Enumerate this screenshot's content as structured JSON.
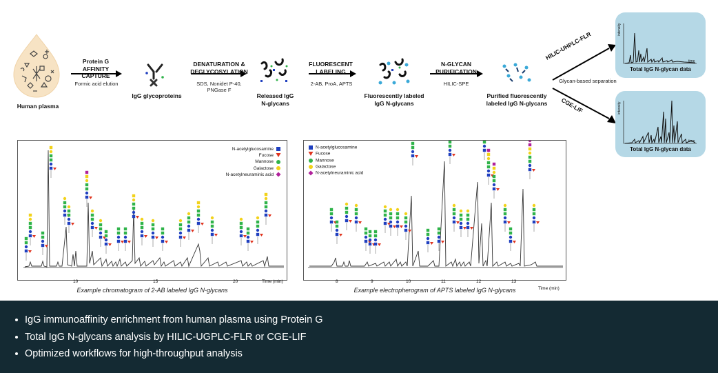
{
  "workflow": {
    "nodes": [
      {
        "id": "plasma",
        "label": "Human plasma"
      },
      {
        "id": "igg",
        "label": "IgG glycoproteins"
      },
      {
        "id": "released",
        "label": "Released IgG N-glycans"
      },
      {
        "id": "labeled",
        "label": "Fluorescently labeled IgG N-glycans"
      },
      {
        "id": "purified",
        "label": "Purified fluorescently labeled IgG N-glycans"
      }
    ],
    "steps": [
      {
        "title": "Protein G AFFINITY CAPTURE",
        "sub": "Formic acid elution"
      },
      {
        "title": "DENATURATION & DEGLYCOSYLATION",
        "sub": "SDS, Nonidet P-40, PNGase F"
      },
      {
        "title": "FLUORESCENT LABELING",
        "sub": "2-AB, ProA, APTS"
      },
      {
        "title": "N-GLYCAN PURIFICATION",
        "sub": "HILIC-SPE"
      }
    ],
    "branches": {
      "upper": "HILIC-UHPLC-FLR",
      "lower": "CGE-LIF",
      "middle": "Glycan-based separation"
    },
    "results": [
      {
        "label": "Total IgG N-glycan data",
        "yaxis": "intensity",
        "xaxis": "time"
      },
      {
        "label": "Total IgG N-glycan data",
        "yaxis": "intensity",
        "xaxis": "time"
      }
    ]
  },
  "legend": [
    {
      "name": "N-acetylglucosamine",
      "italic_prefix": "N",
      "color": "#1f3fbf",
      "shape": "square"
    },
    {
      "name": "Fucose",
      "color": "#e0341f",
      "shape": "triangle"
    },
    {
      "name": "Mannose",
      "color": "#2fb34a",
      "shape": "circle"
    },
    {
      "name": "Galactose",
      "color": "#f2d21a",
      "shape": "circle"
    },
    {
      "name": "N-acetylneuraminic acid",
      "italic_prefix": "N",
      "color": "#b0219b",
      "shape": "diamond"
    }
  ],
  "chromatogram": {
    "caption": "Example chromatogram of 2-AB labeled IgG N-glycans",
    "xlabel": "Time (min)",
    "ticks": [
      "10",
      "15",
      "20"
    ]
  },
  "electropherogram": {
    "caption": "Example electropherogram of APTS labeled IgG N-glycans",
    "xlabel": "Time (min)",
    "ticks": [
      "8",
      "9",
      "10",
      "11",
      "12",
      "13"
    ]
  },
  "footer": {
    "bullets": [
      "IgG immunoaffinity enrichment from human plasma using Protein G",
      "Total IgG N-glycans analysis by HILIC-UGPLC-FLR or CGE-LIF",
      "Optimized workflows for high-throughput analysis"
    ]
  }
}
